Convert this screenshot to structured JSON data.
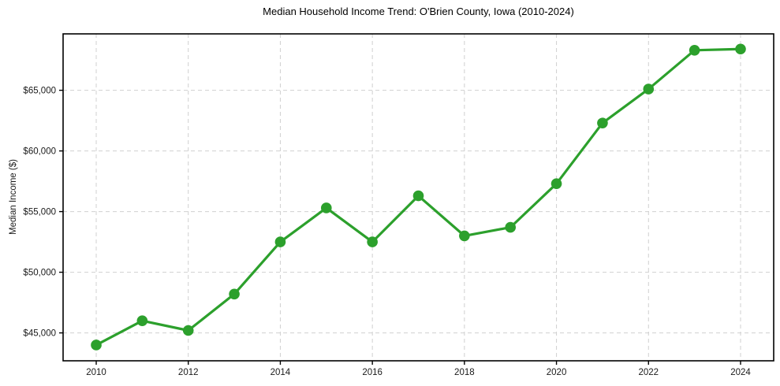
{
  "chart_data": {
    "type": "line",
    "title": "Median Household Income Trend: O'Brien County, Iowa (2010-2024)",
    "xlabel": "",
    "ylabel": "Median Income ($)",
    "x": [
      2010,
      2011,
      2012,
      2013,
      2014,
      2015,
      2016,
      2017,
      2018,
      2019,
      2020,
      2021,
      2022,
      2023,
      2024
    ],
    "series": [
      {
        "name": "Median Household Income",
        "color": "#2ca02c",
        "marker": "circle",
        "values": [
          44000,
          46000,
          45200,
          48200,
          52500,
          55300,
          52500,
          56300,
          53000,
          53700,
          57300,
          62300,
          65100,
          68300,
          68400
        ]
      }
    ],
    "xticks": {
      "values": [
        2010,
        2012,
        2014,
        2016,
        2018,
        2020,
        2022,
        2024
      ],
      "labels": [
        "2010",
        "2012",
        "2014",
        "2016",
        "2018",
        "2020",
        "2022",
        "2024"
      ]
    },
    "yticks": {
      "values": [
        45000,
        50000,
        55000,
        60000,
        65000
      ],
      "labels": [
        "$45,000",
        "$50,000",
        "$55,000",
        "$60,000",
        "$65,000"
      ]
    },
    "xlim": [
      2009.28,
      2024.72
    ],
    "ylim": [
      42700,
      69650
    ],
    "grid": true,
    "grid_color": "#d0d0d0",
    "axis_color": "#000000",
    "tick_label_color": "#1a1a1a",
    "legend": "none"
  }
}
